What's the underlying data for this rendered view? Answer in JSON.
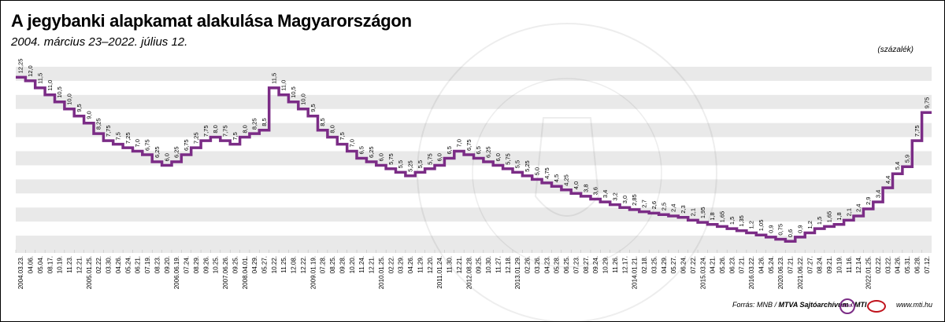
{
  "title": "A jegybanki alapkamat alakulása Magyarországon",
  "subtitle": "2004. március 23–2022. július 12.",
  "unit_label": "(százalék)",
  "footer": {
    "source_prefix": "Forrás: MNB / ",
    "source_org": "MTVA Sajtóarchívum",
    "source_sep": " / ",
    "source_mti": "MTI",
    "url": "www.mti.hu",
    "mtva_logo_text": "MTVA"
  },
  "colors": {
    "line": "#7b2c86",
    "band": "#e9e9e9",
    "background": "#ffffff"
  },
  "chart_data": {
    "type": "line",
    "step": true,
    "ylabel": "százalék",
    "ylim": [
      0,
      13
    ],
    "x": [
      "2004.03.23.",
      "04.06.",
      "05.04.",
      "08.17.",
      "10.19.",
      "11.23.",
      "12.21.",
      "2005.01.25.",
      "02.22.",
      "03.30.",
      "04.26.",
      "05.24.",
      "06.21.",
      "07.19.",
      "08.23.",
      "09.20.",
      "2006.06.19.",
      "07.24.",
      "08.29.",
      "09.26.",
      "10.25.",
      "2007.06.26.",
      "09.25.",
      "2008.04.01.",
      "04.29.",
      "05.27.",
      "10.22.",
      "11.25.",
      "12.08.",
      "12.22.",
      "2009.01.19.",
      "07.28.",
      "08.25.",
      "09.28.",
      "10.20.",
      "11.24.",
      "12.21.",
      "2010.01.25.",
      "02.22.",
      "03.29.",
      "04.26.",
      "11.29.",
      "12.20.",
      "2011.01.24.",
      "11.30.",
      "12.21.",
      "2012.08.28.",
      "09.25.",
      "10.30.",
      "11.27.",
      "12.18.",
      "2013.01.29.",
      "02.26.",
      "03.26.",
      "04.23.",
      "05.28.",
      "06.25.",
      "07.23.",
      "08.27.",
      "09.24.",
      "10.29.",
      "11.26.",
      "12.17.",
      "2014.01.21.",
      "02.18.",
      "03.25.",
      "04.29.",
      "05.27.",
      "06.24.",
      "07.22.",
      "2015.03.24.",
      "04.21.",
      "05.26.",
      "06.23.",
      "07.21.",
      "2016.03.22.",
      "04.26.",
      "05.24.",
      "2020.06.23.",
      "07.21.",
      "2021.06.22.",
      "07.27.",
      "08.24.",
      "09.21.",
      "10.19.",
      "11.16.",
      "12.14.",
      "2022.01.25.",
      "02.22.",
      "03.22.",
      "04.26.",
      "05.31.",
      "06.28.",
      "07.12."
    ],
    "series": [
      {
        "values": [
          12.25,
          12.0,
          11.5,
          11.0,
          10.5,
          10.0,
          9.5,
          9.0,
          8.25,
          7.75,
          7.5,
          7.25,
          7.0,
          6.75,
          6.25,
          6.0,
          6.25,
          6.75,
          7.25,
          7.75,
          8.0,
          7.75,
          7.5,
          8.0,
          8.25,
          8.5,
          11.5,
          11.0,
          10.5,
          10.0,
          9.5,
          8.5,
          8.0,
          7.5,
          7.0,
          6.5,
          6.25,
          6.0,
          5.75,
          5.5,
          5.25,
          5.5,
          5.75,
          6.0,
          6.5,
          7.0,
          6.75,
          6.5,
          6.25,
          6.0,
          5.75,
          5.5,
          5.25,
          5.0,
          4.75,
          4.5,
          4.25,
          4.0,
          3.8,
          3.6,
          3.4,
          3.2,
          3.0,
          2.85,
          2.7,
          2.6,
          2.5,
          2.4,
          2.3,
          2.1,
          1.95,
          1.8,
          1.65,
          1.5,
          1.35,
          1.2,
          1.05,
          0.9,
          0.75,
          0.6,
          0.9,
          1.2,
          1.5,
          1.65,
          1.8,
          2.1,
          2.4,
          2.9,
          3.4,
          4.4,
          5.4,
          5.9,
          7.75,
          9.75
        ]
      }
    ],
    "labels": [
      "12,25",
      "12,0",
      "11,5",
      "11,0",
      "10,5",
      "10,0",
      "9,5",
      "9,0",
      "8,25",
      "7,75",
      "7,5",
      "7,25",
      "7,0",
      "6,75",
      "6,25",
      "6,0",
      "6,25",
      "6,75",
      "7,25",
      "7,75",
      "8,0",
      "7,75",
      "7,5",
      "8,0",
      "8,25",
      "8,5",
      "11,5",
      "11,0",
      "10,5",
      "10,0",
      "9,5",
      "8,5",
      "8,0",
      "7,5",
      "7,0",
      "6,5",
      "6,25",
      "6,0",
      "5,75",
      "5,5",
      "5,25",
      "5,5",
      "5,75",
      "6,0",
      "6,5",
      "7,0",
      "6,75",
      "6,5",
      "6,25",
      "6,0",
      "5,75",
      "5,5",
      "5,25",
      "5,0",
      "4,75",
      "4,5",
      "4,25",
      "4,0",
      "3,8",
      "3,6",
      "3,4",
      "3,2",
      "3,0",
      "2,85",
      "2,7",
      "2,6",
      "2,5",
      "2,4",
      "2,3",
      "2,1",
      "1,95",
      "1,8",
      "1,65",
      "1,5",
      "1,35",
      "1,2",
      "1,05",
      "0,9",
      "0,75",
      "0,6",
      "0,9",
      "1,2",
      "1,5",
      "1,65",
      "1,8",
      "2,1",
      "2,4",
      "2,9",
      "3,4",
      "4,4",
      "5,4",
      "5,9",
      "7,75",
      "9,75"
    ],
    "grid": "horizontal bands",
    "legend": "none"
  }
}
